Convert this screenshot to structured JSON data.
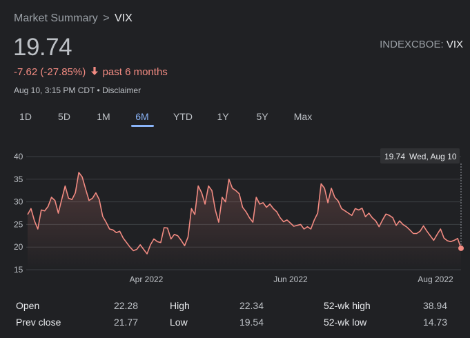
{
  "breadcrumb": {
    "parent": "Market Summary",
    "separator": ">",
    "current": "VIX"
  },
  "quote": {
    "price": "19.74",
    "change": "-7.62 (-27.85%)",
    "period": "past 6 months",
    "timestamp": "Aug 10, 3:15 PM CDT",
    "disclaimer": "Disclaimer",
    "bullet": "•",
    "exchange_prefix": "INDEXCBOE:",
    "exchange_symbol": "VIX"
  },
  "colors": {
    "line": "#f28b82",
    "accent": "#8ab4f8",
    "background": "#202124",
    "grid": "#3c4043"
  },
  "tabs": [
    {
      "label": "1D"
    },
    {
      "label": "5D"
    },
    {
      "label": "1M"
    },
    {
      "label": "6M",
      "active": true
    },
    {
      "label": "YTD"
    },
    {
      "label": "1Y"
    },
    {
      "label": "5Y"
    },
    {
      "label": "Max"
    }
  ],
  "tooltip": {
    "value": "19.74",
    "date": "Wed, Aug 10"
  },
  "stats": {
    "open_label": "Open",
    "open": "22.28",
    "high_label": "High",
    "high": "22.34",
    "wk52_high_label": "52-wk high",
    "wk52_high": "38.94",
    "prev_close_label": "Prev close",
    "prev_close": "21.77",
    "low_label": "Low",
    "low": "19.54",
    "wk52_low_label": "52-wk low",
    "wk52_low": "14.73"
  },
  "chart_data": {
    "type": "area",
    "ylim": [
      15,
      40
    ],
    "yticks": [
      40,
      35,
      30,
      25,
      20,
      15
    ],
    "xticks": [
      "Apr 2022",
      "Jun 2022",
      "Aug 2022"
    ],
    "grid": true,
    "last_point_marker": true,
    "values": [
      27.2,
      28.5,
      25.8,
      24.0,
      28.2,
      28.0,
      29.0,
      31.0,
      30.3,
      27.5,
      30.5,
      33.5,
      30.8,
      30.5,
      32.0,
      36.5,
      35.5,
      32.8,
      30.3,
      30.8,
      32.0,
      30.5,
      26.8,
      25.5,
      24.0,
      23.8,
      23.2,
      23.5,
      22.0,
      21.0,
      20.0,
      19.2,
      19.5,
      20.5,
      19.5,
      18.5,
      20.5,
      21.8,
      21.2,
      21.0,
      24.3,
      24.2,
      21.8,
      22.8,
      22.5,
      21.5,
      20.3,
      22.2,
      28.5,
      27.2,
      33.5,
      32.0,
      29.5,
      33.5,
      32.5,
      28.2,
      25.5,
      31.0,
      30.0,
      35.0,
      33.0,
      32.5,
      31.8,
      28.8,
      27.8,
      26.5,
      25.5,
      31.0,
      29.5,
      29.8,
      28.8,
      29.5,
      28.5,
      27.8,
      26.5,
      25.6,
      26.0,
      25.3,
      24.6,
      24.8,
      25.0,
      24.0,
      24.5,
      24.0,
      26.0,
      27.5,
      34.0,
      33.0,
      29.8,
      33.0,
      31.0,
      30.2,
      28.5,
      28.0,
      27.5,
      27.0,
      28.5,
      28.2,
      28.6,
      26.7,
      27.5,
      26.5,
      25.8,
      24.5,
      26.0,
      27.3,
      27.0,
      26.5,
      24.8,
      25.8,
      25.0,
      24.5,
      23.8,
      23.0,
      23.0,
      23.5,
      24.7,
      23.5,
      22.5,
      21.5,
      22.8,
      24.0,
      22.0,
      21.4,
      21.2,
      21.5,
      21.9,
      19.74
    ]
  }
}
